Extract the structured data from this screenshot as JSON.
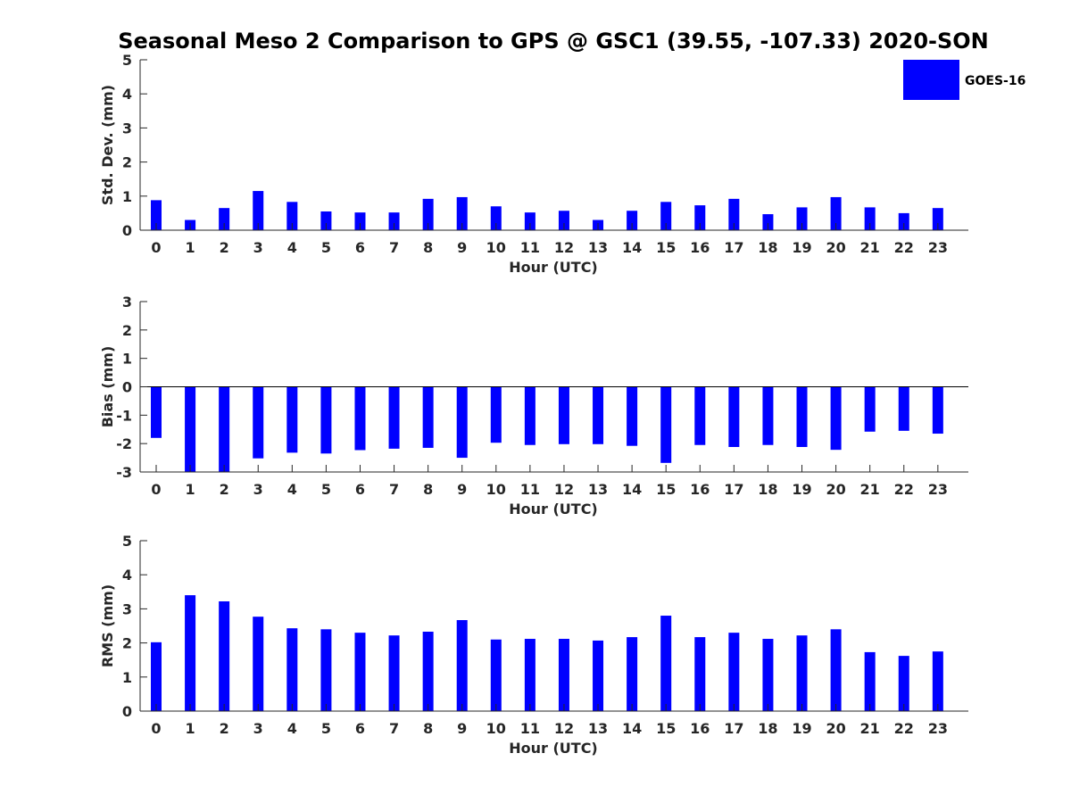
{
  "figure": {
    "title": "Seasonal Meso 2 Comparison to GPS @ GSC1 (39.55, -107.33) 2020-SON",
    "bar_color": "#0000ff",
    "legend": {
      "label": "GOES-16",
      "placement": "top-right"
    }
  },
  "chart_data": [
    {
      "type": "bar",
      "xlabel": "Hour (UTC)",
      "ylabel": "Std. Dev. (mm)",
      "categories": [
        "0",
        "1",
        "2",
        "3",
        "4",
        "5",
        "6",
        "7",
        "8",
        "9",
        "10",
        "11",
        "12",
        "13",
        "14",
        "15",
        "16",
        "17",
        "18",
        "19",
        "20",
        "21",
        "22",
        "23"
      ],
      "values": [
        0.88,
        0.3,
        0.65,
        1.15,
        0.83,
        0.55,
        0.52,
        0.52,
        0.92,
        0.97,
        0.7,
        0.52,
        0.57,
        0.3,
        0.57,
        0.83,
        0.73,
        0.92,
        0.47,
        0.67,
        0.97,
        0.67,
        0.5,
        0.65
      ],
      "ylim": [
        0,
        5
      ],
      "yticks": [
        "0",
        "1",
        "2",
        "3",
        "4",
        "5"
      ],
      "grid": false
    },
    {
      "type": "bar",
      "xlabel": "Hour (UTC)",
      "ylabel": "Bias (mm)",
      "categories": [
        "0",
        "1",
        "2",
        "3",
        "4",
        "5",
        "6",
        "7",
        "8",
        "9",
        "10",
        "11",
        "12",
        "13",
        "14",
        "15",
        "16",
        "17",
        "18",
        "19",
        "20",
        "21",
        "22",
        "23"
      ],
      "values": [
        -1.8,
        -3.0,
        -3.0,
        -2.52,
        -2.32,
        -2.35,
        -2.23,
        -2.18,
        -2.15,
        -2.5,
        -1.97,
        -2.05,
        -2.02,
        -2.02,
        -2.08,
        -2.68,
        -2.05,
        -2.12,
        -2.05,
        -2.12,
        -2.22,
        -1.58,
        -1.55,
        -1.65
      ],
      "ylim": [
        -3,
        3
      ],
      "yticks": [
        "-3",
        "-2",
        "-1",
        "0",
        "1",
        "2",
        "3"
      ],
      "grid": false
    },
    {
      "type": "bar",
      "xlabel": "Hour (UTC)",
      "ylabel": "RMS (mm)",
      "categories": [
        "0",
        "1",
        "2",
        "3",
        "4",
        "5",
        "6",
        "7",
        "8",
        "9",
        "10",
        "11",
        "12",
        "13",
        "14",
        "15",
        "16",
        "17",
        "18",
        "19",
        "20",
        "21",
        "22",
        "23"
      ],
      "values": [
        2.02,
        3.4,
        3.22,
        2.77,
        2.43,
        2.4,
        2.3,
        2.22,
        2.33,
        2.67,
        2.1,
        2.12,
        2.12,
        2.07,
        2.17,
        2.8,
        2.17,
        2.3,
        2.12,
        2.22,
        2.4,
        1.73,
        1.62,
        1.75
      ],
      "ylim": [
        0,
        5
      ],
      "yticks": [
        "0",
        "1",
        "2",
        "3",
        "4",
        "5"
      ],
      "grid": false
    }
  ]
}
